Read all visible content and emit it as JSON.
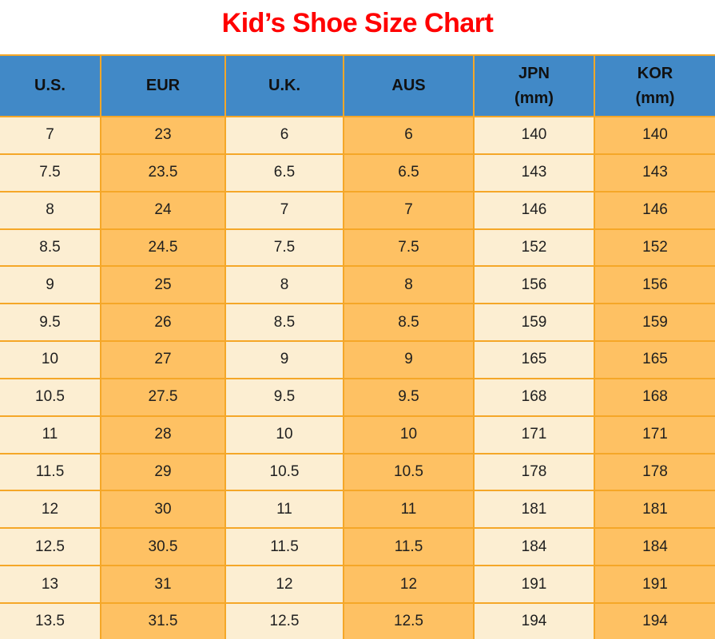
{
  "title": "Kid’s Shoe Size Chart",
  "colors": {
    "title_red": "#ff0000",
    "header_blue": "#4189c7",
    "cell_cream": "#fceed2",
    "cell_orange": "#fec163",
    "border_gold": "#f5a728",
    "cell_text": "#1f1f1f"
  },
  "chart_data": {
    "type": "table",
    "title": "Kid’s Shoe Size Chart",
    "columns": [
      {
        "label": "U.S.",
        "sublabel": ""
      },
      {
        "label": "EUR",
        "sublabel": ""
      },
      {
        "label": "U.K.",
        "sublabel": ""
      },
      {
        "label": "AUS",
        "sublabel": ""
      },
      {
        "label": "JPN",
        "sublabel": "(mm)"
      },
      {
        "label": "KOR",
        "sublabel": "(mm)"
      }
    ],
    "rows": [
      [
        "7",
        "23",
        "6",
        "6",
        "140",
        "140"
      ],
      [
        "7.5",
        "23.5",
        "6.5",
        "6.5",
        "143",
        "143"
      ],
      [
        "8",
        "24",
        "7",
        "7",
        "146",
        "146"
      ],
      [
        "8.5",
        "24.5",
        "7.5",
        "7.5",
        "152",
        "152"
      ],
      [
        "9",
        "25",
        "8",
        "8",
        "156",
        "156"
      ],
      [
        "9.5",
        "26",
        "8.5",
        "8.5",
        "159",
        "159"
      ],
      [
        "10",
        "27",
        "9",
        "9",
        "165",
        "165"
      ],
      [
        "10.5",
        "27.5",
        "9.5",
        "9.5",
        "168",
        "168"
      ],
      [
        "11",
        "28",
        "10",
        "10",
        "171",
        "171"
      ],
      [
        "11.5",
        "29",
        "10.5",
        "10.5",
        "178",
        "178"
      ],
      [
        "12",
        "30",
        "11",
        "11",
        "181",
        "181"
      ],
      [
        "12.5",
        "30.5",
        "11.5",
        "11.5",
        "184",
        "184"
      ],
      [
        "13",
        "31",
        "12",
        "12",
        "191",
        "191"
      ],
      [
        "13.5",
        "31.5",
        "12.5",
        "12.5",
        "194",
        "194"
      ]
    ]
  }
}
